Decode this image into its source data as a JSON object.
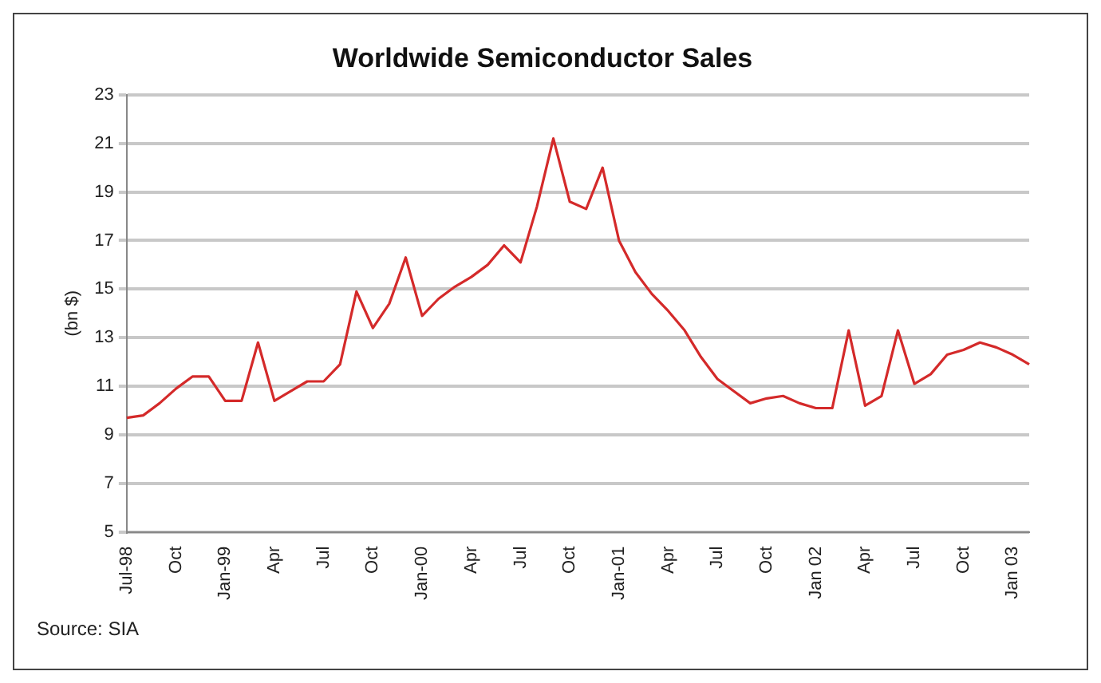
{
  "chart_data": {
    "type": "line",
    "title": "Worldwide Semiconductor Sales",
    "ylabel": "(bn $)",
    "categories": [
      "Jul-98",
      null,
      null,
      "Oct",
      null,
      null,
      "Jan-99",
      null,
      null,
      "Apr",
      null,
      null,
      "Jul",
      null,
      null,
      "Oct",
      null,
      null,
      "Jan-00",
      null,
      null,
      "Apr",
      null,
      null,
      "Jul",
      null,
      null,
      "Oct",
      null,
      null,
      "Jan-01",
      null,
      null,
      "Apr",
      null,
      null,
      "Jul",
      null,
      null,
      "Oct",
      null,
      null,
      "Jan 02",
      null,
      null,
      "Apr",
      null,
      null,
      "Jul",
      null,
      null,
      "Oct",
      null,
      null,
      "Jan 03",
      null
    ],
    "series": [
      {
        "color": "#d42a2a",
        "values": [
          9.7,
          9.8,
          10.3,
          10.9,
          11.4,
          11.4,
          10.4,
          10.4,
          12.8,
          10.4,
          10.8,
          11.2,
          11.2,
          11.9,
          14.9,
          13.4,
          14.4,
          16.3,
          13.9,
          14.6,
          15.1,
          15.5,
          16.0,
          16.8,
          16.1,
          18.4,
          21.2,
          18.6,
          18.3,
          20.0,
          17.0,
          15.7,
          14.8,
          14.1,
          13.3,
          12.2,
          11.3,
          10.8,
          10.3,
          10.5,
          10.6,
          10.3,
          10.1,
          10.1,
          13.3,
          10.2,
          10.6,
          13.3,
          11.1,
          11.5,
          12.3,
          12.5,
          12.8,
          12.6,
          12.3,
          11.9
        ]
      }
    ],
    "ylim": [
      5,
      23
    ],
    "yticks": [
      5,
      7,
      9,
      11,
      13,
      15,
      17,
      19,
      21,
      23
    ],
    "grid": "y",
    "legend": false,
    "marker": "none",
    "line_style": "solid",
    "annotations": [
      "Source: SIA"
    ]
  }
}
